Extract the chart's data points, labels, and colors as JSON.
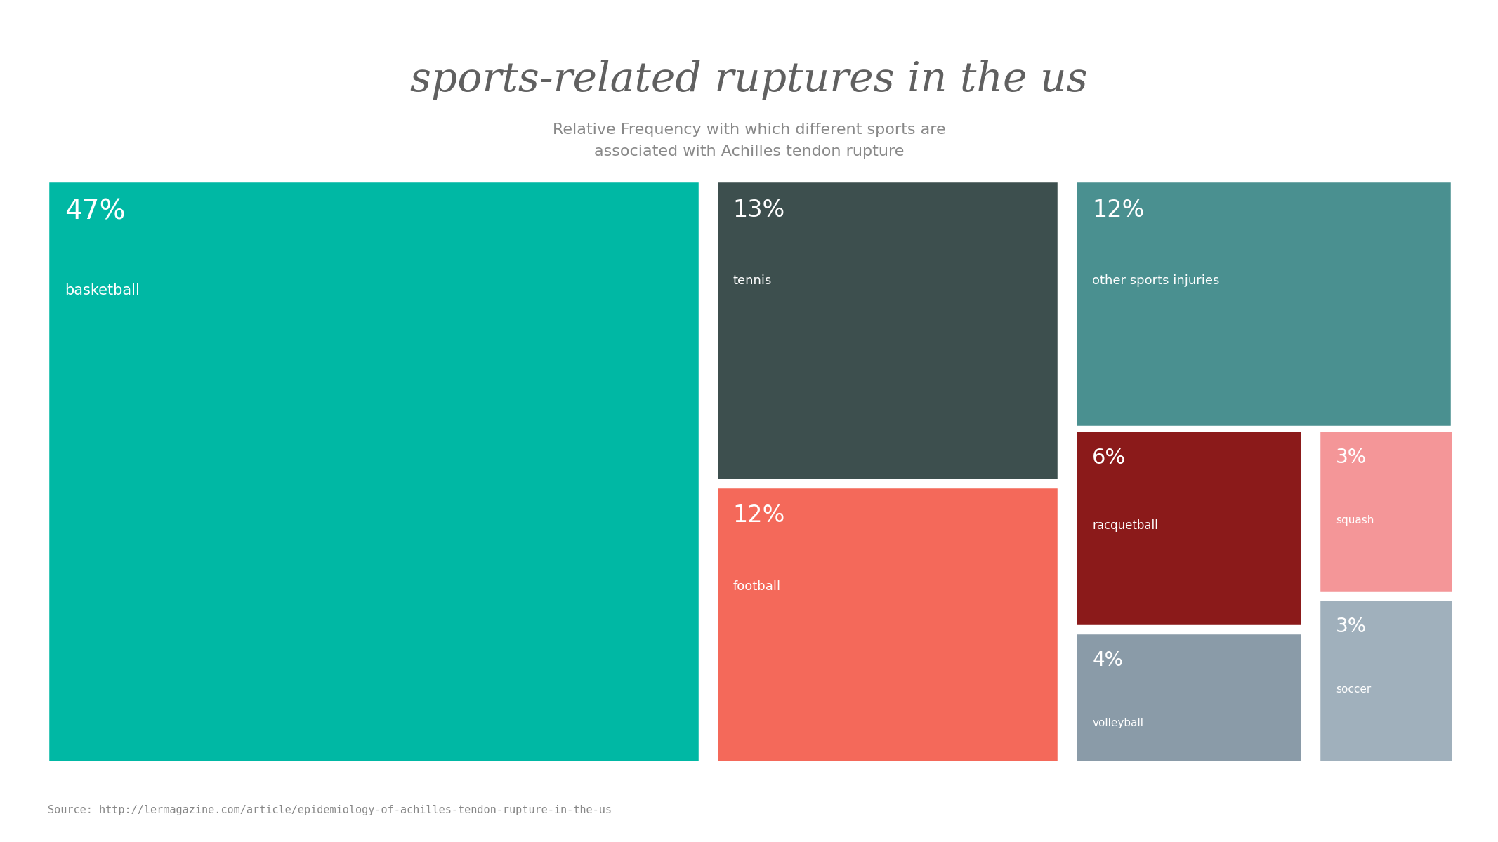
{
  "title": "sports-related ruptures in the us",
  "subtitle": "Relative Frequency with which different sports are\nassociated with Achilles tendon rupture",
  "source": "Source: http://lermagazine.com/article/epidemiology-of-achilles-tendon-rupture-in-the-us",
  "background_color": "#ffffff",
  "title_color": "#606060",
  "subtitle_color": "#888888",
  "source_color": "#888888",
  "text_color": "#ffffff",
  "segments": [
    {
      "label": "Basketball",
      "pct": "47%",
      "value": 47,
      "color": "#00B8A4"
    },
    {
      "label": "Tennis",
      "pct": "13%",
      "value": 13,
      "color": "#3D4F4E"
    },
    {
      "label": "Football",
      "pct": "12%",
      "value": 12,
      "color": "#F4695A"
    },
    {
      "label": "Other Sports Injuries",
      "pct": "12%",
      "value": 12,
      "color": "#4A9090"
    },
    {
      "label": "Racquetball",
      "pct": "6%",
      "value": 6,
      "color": "#8B1A1A"
    },
    {
      "label": "Squash",
      "pct": "3%",
      "value": 3,
      "color": "#F49698"
    },
    {
      "label": "Volleyball",
      "pct": "4%",
      "value": 4,
      "color": "#8A9BA8"
    },
    {
      "label": "Soccer",
      "pct": "3%",
      "value": 3,
      "color": "#A0B0BC"
    }
  ]
}
